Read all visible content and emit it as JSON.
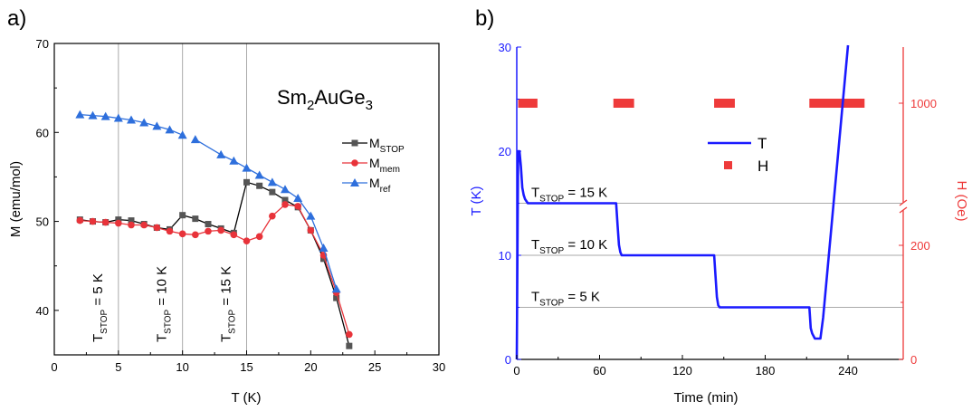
{
  "panels": {
    "a": "a)",
    "b": "b)"
  },
  "colors": {
    "stop": "#555555",
    "mem": "#e8333a",
    "ref": "#2e6fdc",
    "temp": "#1a1aff",
    "field": "#ee3a3a"
  },
  "chart_data": [
    {
      "type": "line",
      "title": "",
      "xlabel": "T (K)",
      "ylabel": "M (emu/mol)",
      "xlim": [
        0,
        30
      ],
      "ylim": [
        35,
        70
      ],
      "xticks": [
        0,
        5,
        10,
        15,
        20,
        25,
        30
      ],
      "yticks": [
        40,
        50,
        60,
        70
      ],
      "compound": {
        "base1": "Sm",
        "sub1": "2",
        "base2": "AuGe",
        "sub2": "3"
      },
      "series": [
        {
          "name_base": "M",
          "name_sub": "STOP",
          "marker": "square",
          "x": [
            2,
            3,
            4,
            5,
            6,
            7,
            8,
            9,
            10,
            11,
            12,
            13,
            14,
            15,
            16,
            17,
            18,
            19,
            20,
            21,
            22,
            23
          ],
          "y": [
            50.2,
            50.0,
            49.9,
            50.2,
            50.1,
            49.7,
            49.3,
            49.1,
            50.7,
            50.3,
            49.7,
            49.2,
            48.7,
            54.4,
            54.0,
            53.3,
            52.4,
            51.6,
            49.0,
            45.8,
            41.4,
            36.0
          ]
        },
        {
          "name_base": "M",
          "name_sub": "mem",
          "marker": "circle",
          "x": [
            2,
            3,
            4,
            5,
            6,
            7,
            8,
            9,
            10,
            11,
            12,
            13,
            14,
            15,
            16,
            17,
            18,
            19,
            20,
            21,
            22,
            23
          ],
          "y": [
            50.1,
            50.0,
            49.9,
            49.8,
            49.6,
            49.6,
            49.3,
            48.9,
            48.6,
            48.5,
            48.9,
            49.0,
            48.5,
            47.8,
            48.3,
            50.6,
            51.9,
            51.7,
            49.0,
            46.2,
            42.0,
            37.3
          ]
        },
        {
          "name_base": "M",
          "name_sub": "ref",
          "marker": "triangle",
          "x": [
            2,
            3,
            4,
            5,
            6,
            7,
            8,
            9,
            10,
            11,
            13,
            14,
            15,
            16,
            17,
            18,
            19,
            20,
            21,
            22
          ],
          "y": [
            62.0,
            61.9,
            61.8,
            61.6,
            61.4,
            61.1,
            60.7,
            60.3,
            59.7,
            59.2,
            57.5,
            56.8,
            56.0,
            55.2,
            54.4,
            53.6,
            52.6,
            50.6,
            47.0,
            42.4
          ],
          "breaks_after": [
            10
          ]
        }
      ],
      "guides": [
        {
          "x": 5,
          "label_base": "T",
          "label_sub": "STOP",
          "label_rest": " = 5 K"
        },
        {
          "x": 10,
          "label_base": "T",
          "label_sub": "STOP",
          "label_rest": " = 10 K"
        },
        {
          "x": 15,
          "label_base": "T",
          "label_sub": "STOP",
          "label_rest": " = 15 K"
        }
      ]
    },
    {
      "type": "line",
      "title": "",
      "xlabel": "Time (min)",
      "ylabel": "T (K)",
      "y2label": "H (Oe)",
      "xlim": [
        -2,
        252
      ],
      "ylim": [
        0,
        30
      ],
      "xticks": [
        0,
        60,
        120,
        180,
        240
      ],
      "yticks": [
        0,
        10,
        20,
        30
      ],
      "y2ticks_bottom": [
        0,
        200
      ],
      "y2ticks_top": [
        1000
      ],
      "y2_break_value": 250,
      "series": [
        {
          "name": "T",
          "x": [
            0,
            1,
            2,
            3,
            4,
            5,
            6,
            8,
            10,
            15,
            60,
            72,
            73,
            74,
            75,
            76,
            78,
            85,
            120,
            143,
            144,
            145,
            146,
            147,
            150,
            180,
            210,
            212,
            213,
            214,
            216,
            220,
            222,
            240
          ],
          "y": [
            0,
            20,
            20,
            18.5,
            16.5,
            15.8,
            15.4,
            15,
            15,
            15,
            15,
            15,
            13,
            11,
            10.3,
            10,
            10,
            10,
            10,
            10,
            8,
            6,
            5.2,
            5,
            5,
            5,
            5,
            5,
            3,
            2.5,
            2,
            2,
            4,
            30
          ]
        },
        {
          "name": "H",
          "value": 1000,
          "segments": [
            [
              1,
              15
            ],
            [
              70,
              85
            ],
            [
              143,
              158
            ],
            [
              212,
              252
            ]
          ]
        }
      ],
      "guides": [
        {
          "y": 15,
          "label_base": "T",
          "label_sub": "STOP",
          "label_rest": " = 15 K"
        },
        {
          "y": 10,
          "label_base": "T",
          "label_sub": "STOP",
          "label_rest": " = 10 K"
        },
        {
          "y": 5,
          "label_base": "T",
          "label_sub": "STOP",
          "label_rest": " = 5 K"
        }
      ]
    }
  ]
}
